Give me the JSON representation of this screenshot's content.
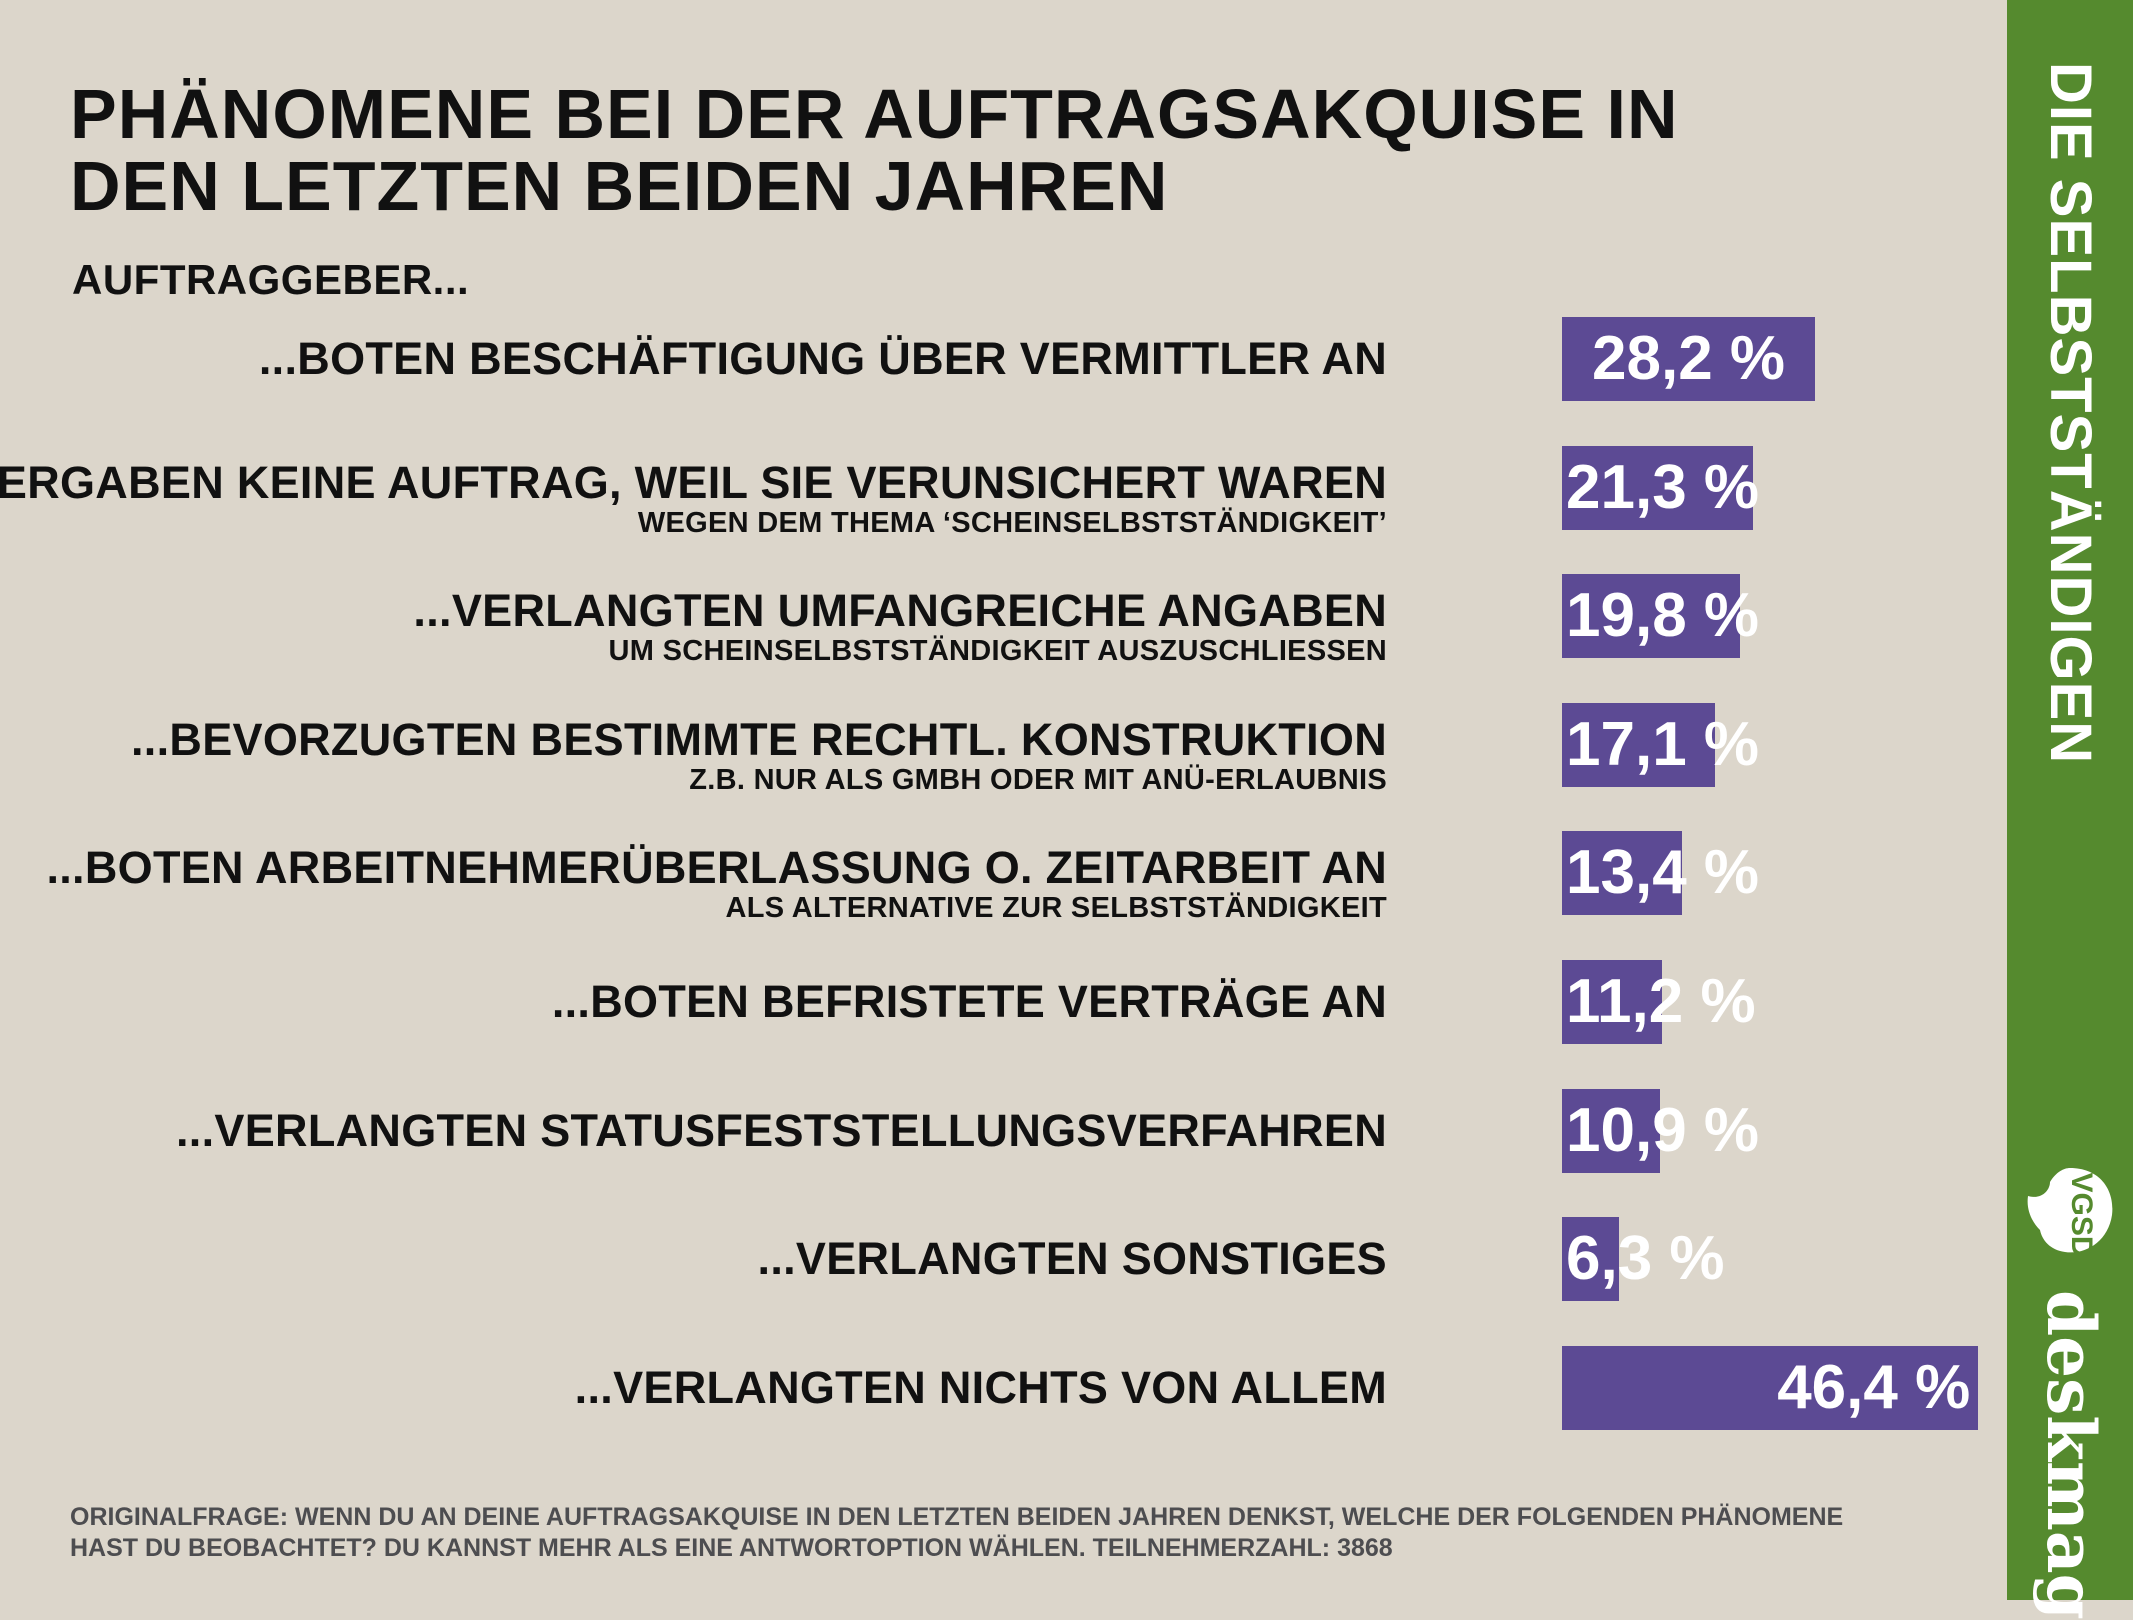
{
  "header": {
    "title_line1": "PHÄNOMENE BEI DER AUFTRAGSAKQUISE IN",
    "title_line2": "DEN LETZTEN BEIDEN JAHREN",
    "subtitle": "AUFTRAGGEBER..."
  },
  "chart_data": {
    "type": "bar",
    "orientation": "horizontal",
    "title": "PHÄNOMENE BEI DER AUFTRAGSAKQUISE IN DEN LETZTEN BEIDEN JAHREN",
    "subtitle": "AUFTRAGGEBER...",
    "categories": [
      {
        "label": "...BOTEN BESCHÄFTIGUNG ÜBER VERMITTLER AN",
        "sublabel": ""
      },
      {
        "label": "...VERGABEN KEINE AUFTRAG, WEIL SIE VERUNSICHERT WAREN",
        "sublabel": "WEGEN DEM THEMA ‘SCHEINSELBSTSTÄNDIGKEIT’"
      },
      {
        "label": "...VERLANGTEN UMFANGREICHE ANGABEN",
        "sublabel": "UM SCHEINSELBSTSTÄNDIGKEIT AUSZUSCHLIESSEN"
      },
      {
        "label": "...BEVORZUGTEN BESTIMMTE RECHTL. KONSTRUKTION",
        "sublabel": "Z.B. NUR ALS GMBH ODER MIT ANÜ-ERLAUBNIS"
      },
      {
        "label": "...BOTEN ARBEITNEHMERÜBERLASSUNG O. ZEITARBEIT AN",
        "sublabel": "ALS ALTERNATIVE ZUR SELBSTSTÄNDIGKEIT"
      },
      {
        "label": "...BOTEN BEFRISTETE VERTRÄGE AN",
        "sublabel": ""
      },
      {
        "label": "...VERLANGTEN STATUSFESTSTELLUNGSVERFAHREN",
        "sublabel": ""
      },
      {
        "label": "...VERLANGTEN SONSTIGES",
        "sublabel": ""
      },
      {
        "label": "...VERLANGTEN NICHTS VON ALLEM",
        "sublabel": ""
      }
    ],
    "values": [
      28.2,
      21.3,
      19.8,
      17.1,
      13.4,
      11.2,
      10.9,
      6.3,
      46.4
    ],
    "value_labels": [
      "28,2 %",
      "21,3 %",
      "19,8 %",
      "17,1 %",
      "13,4 %",
      "11,2 %",
      "10,9 %",
      "6,3 %",
      "46,4 %"
    ],
    "unit": "%",
    "grid": false,
    "colors": {
      "bar": "#5c4a94",
      "background": "#dcd6cb",
      "value_text": "#ffffff"
    }
  },
  "footer": {
    "line1": "ORIGINALFRAGE: WENN DU AN DEINE AUFTRAGSAKQUISE IN DEN LETZTEN BEIDEN JAHREN DENKST, WELCHE DER FOLGENDEN PHÄNOMENE",
    "line2": "HAST DU BEOBACHTET? DU KANNST MEHR ALS EINE ANTWORTOPTION WÄHLEN. TEILNEHMERZAHL:  3868"
  },
  "sidebar": {
    "title": "DIE SELBSTSTÄNDIGEN",
    "logo_text": "VGSD",
    "brand": "deskmag",
    "color": "#558a2e"
  }
}
